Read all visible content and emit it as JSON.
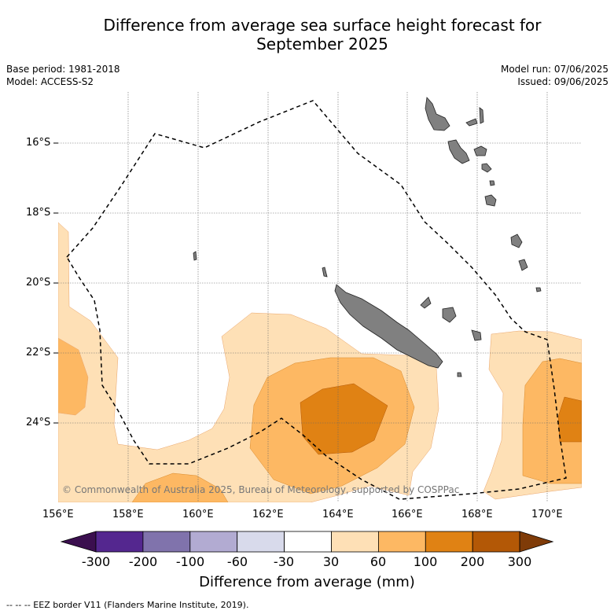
{
  "title_line1": "Difference from average sea surface height forecast for",
  "title_line2": "September 2025",
  "meta": {
    "base_period": "Base period: 1981-2018",
    "model": "Model: ACCESS-S2",
    "model_run": "Model run: 07/06/2025",
    "issued": "Issued: 09/06/2025"
  },
  "copyright": "© Commonwealth of Australia 2025, Bureau of Meteorology, supported by COSPPac",
  "lat_labels": [
    "16°S",
    "18°S",
    "20°S",
    "22°S",
    "24°S"
  ],
  "lon_labels": [
    "156°E",
    "158°E",
    "160°E",
    "162°E",
    "164°E",
    "166°E",
    "168°E",
    "170°E"
  ],
  "colorbar": {
    "title": "Difference from average (mm)",
    "tick_labels": [
      "-300",
      "-200",
      "-100",
      "-60",
      "-30",
      "30",
      "60",
      "100",
      "200",
      "300"
    ],
    "colors": [
      "#3b0f4f",
      "#54278f",
      "#8073ac",
      "#b2abd2",
      "#d8daeb",
      "#ffffff",
      "#fee0b6",
      "#fdb863",
      "#e08214",
      "#b35806",
      "#7f3b08"
    ]
  },
  "footnote": "--  --  -- EEZ border V11 (Flanders Marine Institute, 2019).",
  "land_color": "#808080"
}
